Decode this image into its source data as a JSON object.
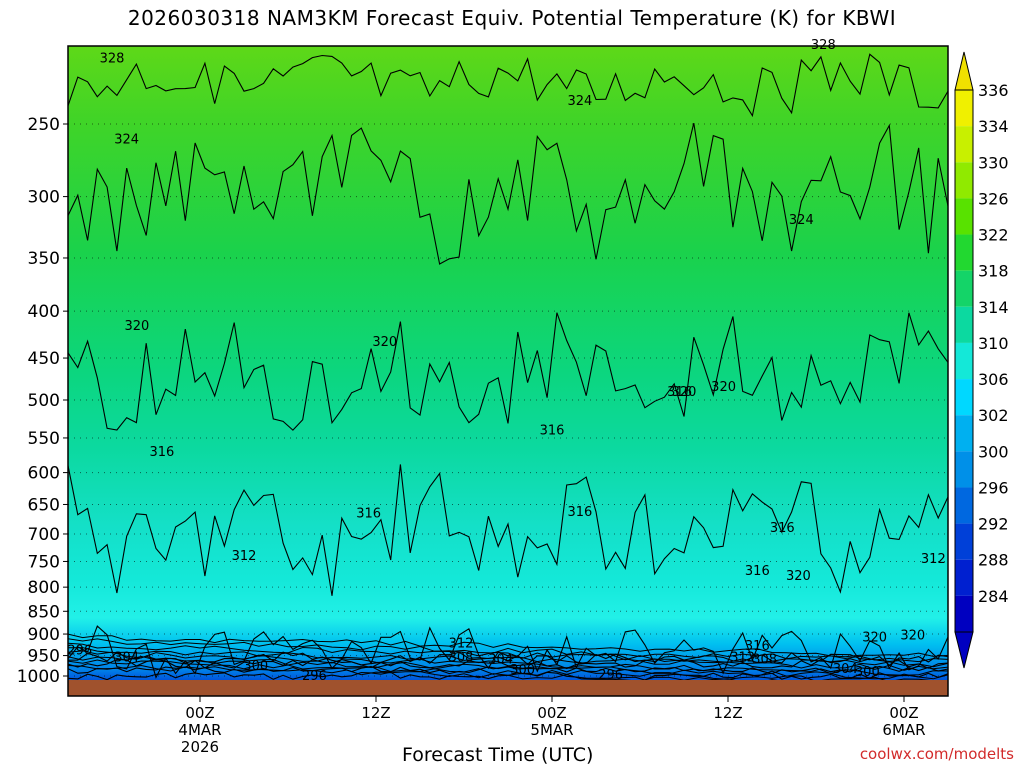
{
  "page": {
    "title": "2026030318 NAM3KM Forecast Equiv. Potential Temperature (K) for KBWI",
    "credit": "coolwx.com/modelts"
  },
  "chart_data": {
    "type": "contour-time-height",
    "title": "2026030318 NAM3KM Forecast Equiv. Potential Temperature (K) for KBWI",
    "xlabel": "Forecast Time (UTC)",
    "ylabel": "",
    "x_range_hours_from_init": [
      -3,
      57
    ],
    "y_axis_hpa": {
      "range": [
        200,
        1000
      ],
      "scale": "log-pressure",
      "ticks": [
        250,
        300,
        350,
        400,
        450,
        500,
        550,
        600,
        650,
        700,
        750,
        800,
        850,
        900,
        950,
        1000
      ]
    },
    "x_ticks": [
      {
        "hour": 6,
        "lines": [
          "00Z",
          "4MAR",
          "2026"
        ]
      },
      {
        "hour": 18,
        "lines": [
          "12Z"
        ]
      },
      {
        "hour": 30,
        "lines": [
          "00Z",
          "5MAR"
        ]
      },
      {
        "hour": 42,
        "lines": [
          "12Z"
        ]
      },
      {
        "hour": 54,
        "lines": [
          "00Z",
          "6MAR"
        ]
      }
    ],
    "colorbar": {
      "labels": [
        "336",
        "334",
        "330",
        "326",
        "322",
        "318",
        "314",
        "310",
        "306",
        "302",
        "300",
        "296",
        "292",
        "288",
        "284"
      ],
      "colors": [
        "#f0f000",
        "#c8f000",
        "#90ea00",
        "#58e200",
        "#22d830",
        "#14d468",
        "#0cd9a0",
        "#14e8d8",
        "#00d8ff",
        "#00b0f0",
        "#0090e8",
        "#0068e0",
        "#0040d8",
        "#0020d0",
        "#0000c0"
      ]
    },
    "isotherms_K": [
      296,
      300,
      304,
      308,
      312,
      316,
      320,
      324,
      328
    ],
    "contour_labels": [
      {
        "text": "328",
        "hour": 0.0,
        "hpa": 212
      },
      {
        "text": "328",
        "hour": 48.5,
        "hpa": 205
      },
      {
        "text": "324",
        "hour": 1.0,
        "hpa": 260
      },
      {
        "text": "324",
        "hour": 31.9,
        "hpa": 236
      },
      {
        "text": "324",
        "hour": 47.0,
        "hpa": 318
      },
      {
        "text": "320",
        "hour": 1.7,
        "hpa": 415
      },
      {
        "text": "320",
        "hour": 18.6,
        "hpa": 432
      },
      {
        "text": "320",
        "hour": 39.0,
        "hpa": 490
      },
      {
        "text": "320",
        "hour": 41.7,
        "hpa": 484
      },
      {
        "text": "320",
        "hour": 46.8,
        "hpa": 778
      },
      {
        "text": "320",
        "hour": 52.0,
        "hpa": 908
      },
      {
        "text": "320",
        "hour": 54.6,
        "hpa": 903
      },
      {
        "text": "316",
        "hour": 3.4,
        "hpa": 570
      },
      {
        "text": "316",
        "hour": 17.5,
        "hpa": 665
      },
      {
        "text": "316",
        "hour": 30.0,
        "hpa": 540
      },
      {
        "text": "316",
        "hour": 31.9,
        "hpa": 662
      },
      {
        "text": "316",
        "hour": 38.7,
        "hpa": 490
      },
      {
        "text": "316",
        "hour": 45.7,
        "hpa": 690
      },
      {
        "text": "316",
        "hour": 44.0,
        "hpa": 768
      },
      {
        "text": "316",
        "hour": 44.0,
        "hpa": 928
      },
      {
        "text": "312",
        "hour": 9.0,
        "hpa": 740
      },
      {
        "text": "312",
        "hour": 23.8,
        "hpa": 922
      },
      {
        "text": "312",
        "hour": 56.0,
        "hpa": 745
      },
      {
        "text": "312",
        "hour": 43.0,
        "hpa": 955
      },
      {
        "text": "308",
        "hour": 23.8,
        "hpa": 955
      },
      {
        "text": "308",
        "hour": 44.5,
        "hpa": 960
      },
      {
        "text": "304",
        "hour": 1.0,
        "hpa": 955
      },
      {
        "text": "304",
        "hour": 26.5,
        "hpa": 960
      },
      {
        "text": "304",
        "hour": 50.0,
        "hpa": 983
      },
      {
        "text": "300",
        "hour": 9.8,
        "hpa": 975
      },
      {
        "text": "300",
        "hour": 28.0,
        "hpa": 985
      },
      {
        "text": "300",
        "hour": 51.5,
        "hpa": 990
      },
      {
        "text": "296",
        "hour": -2.2,
        "hpa": 938
      },
      {
        "text": "296",
        "hour": 13.8,
        "hpa": 1000
      },
      {
        "text": "296",
        "hour": 34.0,
        "hpa": 998
      }
    ]
  }
}
